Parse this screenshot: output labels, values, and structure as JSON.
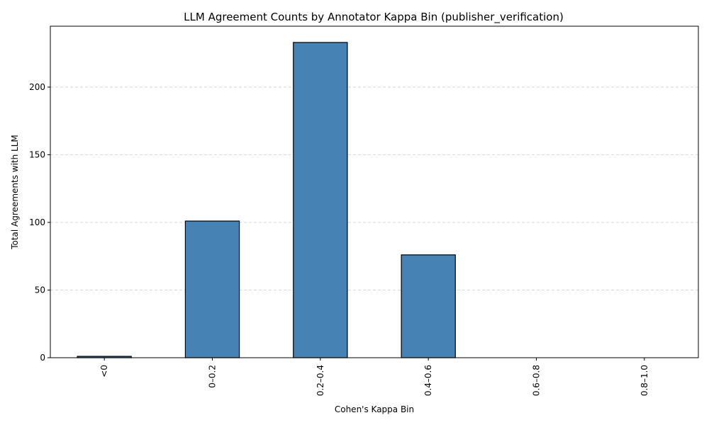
{
  "chart_data": {
    "type": "bar",
    "title": "LLM Agreement Counts by Annotator Kappa Bin (publisher_verification)",
    "xlabel": "Cohen's Kappa Bin",
    "ylabel": "Total Agreements with LLM",
    "categories": [
      "<0",
      "0–0.2",
      "0.2–0.4",
      "0.4–0.6",
      "0.6–0.8",
      "0.8–1.0"
    ],
    "values": [
      1,
      101,
      233,
      76,
      0,
      0
    ],
    "ylim": [
      0,
      245
    ],
    "yticks": [
      0,
      50,
      100,
      150,
      200
    ],
    "grid": "y-dashed",
    "legend": "none",
    "colors": {
      "bar": "#4682b4",
      "edge": "#000000",
      "grid": "#cccccc"
    }
  }
}
